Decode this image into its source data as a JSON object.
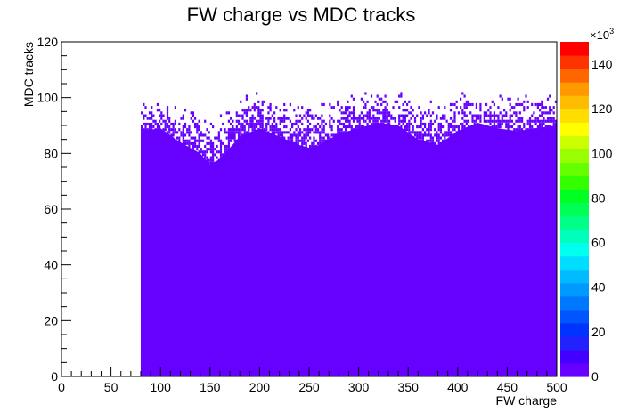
{
  "chart_data": {
    "type": "heatmap",
    "title": "FW charge vs MDC tracks",
    "xlabel": "FW charge",
    "ylabel": "MDC tracks",
    "xlim": [
      0,
      500
    ],
    "ylim": [
      0,
      120
    ],
    "x_ticks": [
      "0",
      "50",
      "100",
      "150",
      "200",
      "250",
      "300",
      "350",
      "400",
      "450",
      "500"
    ],
    "y_ticks": [
      "0",
      "20",
      "40",
      "60",
      "80",
      "100",
      "120"
    ],
    "fill_region": {
      "x_start": 80,
      "x_end": 500,
      "y_start": 0
    },
    "upper_edge_profile": {
      "x": [
        80,
        100,
        120,
        140,
        150,
        160,
        180,
        200,
        220,
        240,
        250,
        260,
        280,
        300,
        320,
        340,
        360,
        380,
        400,
        420,
        440,
        460,
        480,
        500
      ],
      "y_solid": [
        88,
        89,
        84,
        80,
        76,
        78,
        86,
        89,
        86,
        83,
        82,
        83,
        87,
        89,
        91,
        90,
        85,
        83,
        88,
        91,
        89,
        88,
        89,
        90
      ],
      "y_scatter_top": [
        99,
        100,
        98,
        95,
        92,
        94,
        100,
        102,
        100,
        98,
        97,
        98,
        100,
        101,
        102,
        102,
        99,
        98,
        101,
        102,
        101,
        100,
        101,
        102
      ]
    },
    "colorbar": {
      "multiplier": "×10",
      "exponent": "3",
      "range": [
        0,
        150
      ],
      "ticks": [
        "0",
        "20",
        "40",
        "60",
        "80",
        "100",
        "120",
        "140"
      ],
      "colors": [
        "#6600ff",
        "#4400ff",
        "#2222ff",
        "#0033ff",
        "#0055ff",
        "#0077ff",
        "#0099ff",
        "#00bbff",
        "#00ddff",
        "#00ffee",
        "#00ffbb",
        "#00ff88",
        "#00ff55",
        "#00ff22",
        "#33ff00",
        "#66ff00",
        "#99ff00",
        "#ccff00",
        "#ffff00",
        "#ffdd00",
        "#ffbb00",
        "#ff9900",
        "#ff6600",
        "#ff3300",
        "#ff0000"
      ]
    },
    "grid": false,
    "legend": "none"
  }
}
